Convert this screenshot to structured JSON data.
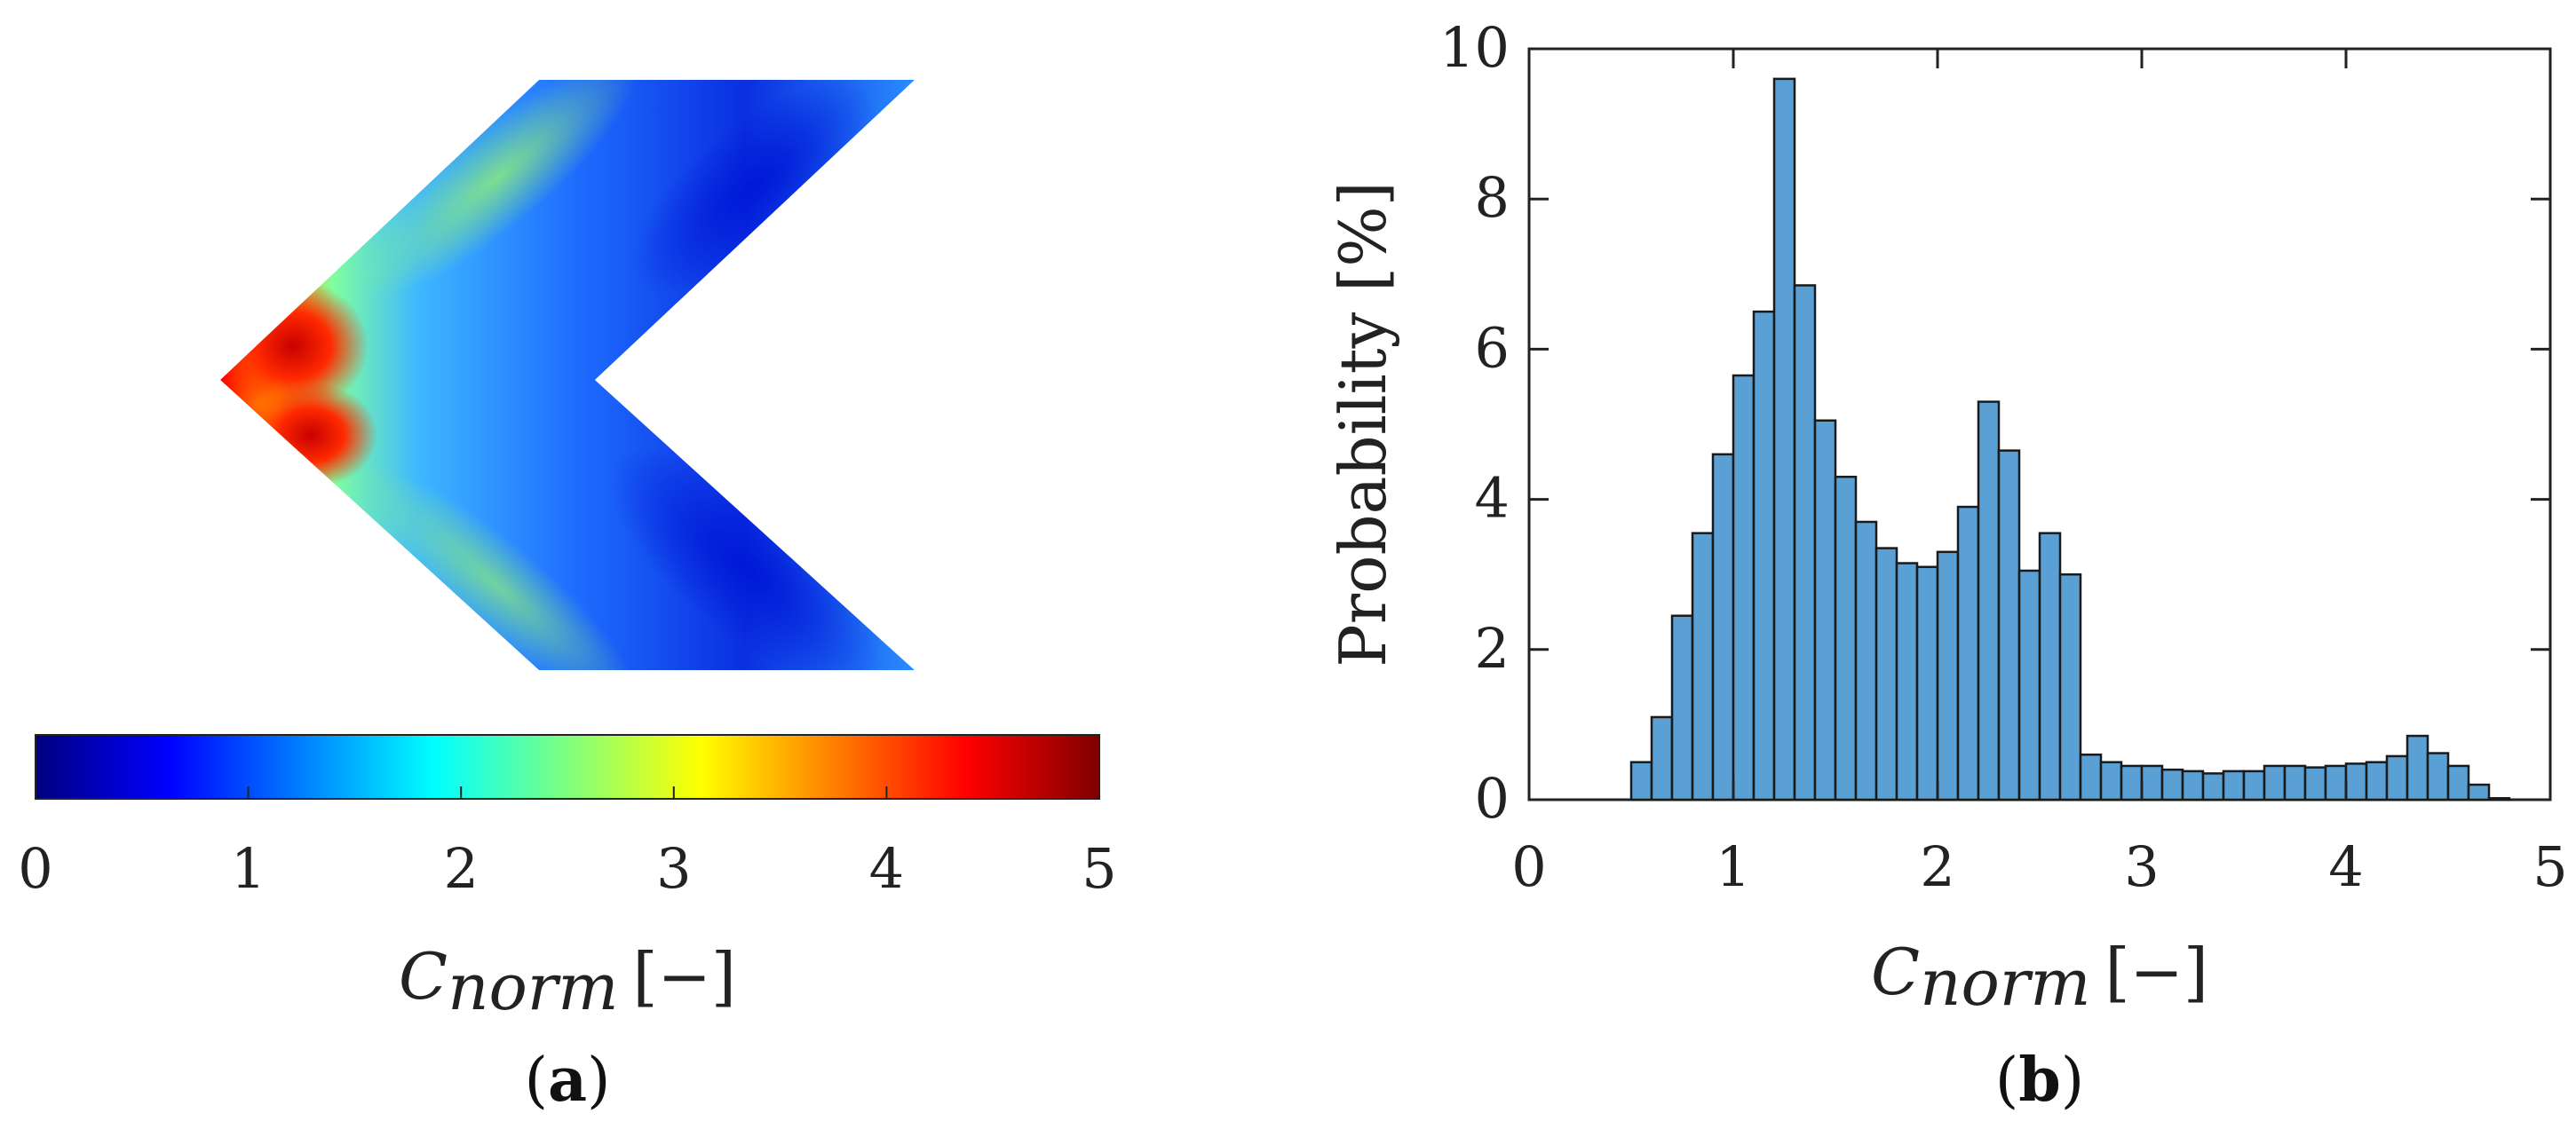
{
  "chart_data": [
    {
      "type": "heatmap",
      "panel_label": "a",
      "colorbar": {
        "colormap": "jet",
        "range": [
          0,
          5
        ],
        "ticks": [
          "0",
          "1",
          "2",
          "3",
          "4",
          "5"
        ],
        "label_main": "C",
        "label_sub": "norm",
        "label_unit": "[−]"
      },
      "colors": {
        "jet_stops": [
          "#00007f",
          "#0000ff",
          "#007fff",
          "#00ffff",
          "#7fff7f",
          "#ffff00",
          "#ff7f00",
          "#ff0000",
          "#7f0000"
        ]
      }
    },
    {
      "type": "bar",
      "panel_label": "b",
      "xlabel_main": "C",
      "xlabel_sub": "norm",
      "xlabel_unit": "[−]",
      "ylabel": "Probability [%]",
      "xlim": [
        0,
        5
      ],
      "ylim": [
        0,
        10
      ],
      "xticks": [
        "0",
        "1",
        "2",
        "3",
        "4",
        "5"
      ],
      "yticks": [
        "0",
        "2",
        "4",
        "6",
        "8",
        "10"
      ],
      "bin_width": 0.1,
      "bin_starts": [
        0.5,
        0.6,
        0.7,
        0.8,
        0.9,
        1.0,
        1.1,
        1.2,
        1.3,
        1.4,
        1.5,
        1.6,
        1.7,
        1.8,
        1.9,
        2.0,
        2.1,
        2.2,
        2.3,
        2.4,
        2.5,
        2.6,
        2.7,
        2.8,
        2.9,
        3.0,
        3.1,
        3.2,
        3.3,
        3.4,
        3.5,
        3.6,
        3.7,
        3.8,
        3.9,
        4.0,
        4.1,
        4.2,
        4.3,
        4.4,
        4.5,
        4.6,
        4.7
      ],
      "values": [
        0.5,
        1.1,
        2.45,
        3.55,
        4.6,
        5.65,
        6.5,
        9.6,
        6.85,
        5.05,
        4.3,
        3.7,
        3.35,
        3.15,
        3.1,
        3.3,
        3.9,
        5.3,
        4.65,
        3.05,
        3.55,
        3.0,
        0.6,
        0.5,
        0.45,
        0.45,
        0.4,
        0.38,
        0.35,
        0.38,
        0.38,
        0.45,
        0.45,
        0.43,
        0.45,
        0.48,
        0.5,
        0.58,
        0.85,
        0.62,
        0.45,
        0.2,
        0.02
      ],
      "colors": {
        "bar_fill": "#5aa0d4",
        "bar_edge": "#1a1a1a",
        "axis": "#222222"
      }
    }
  ]
}
